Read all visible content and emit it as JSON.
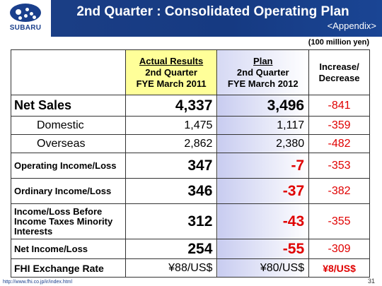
{
  "header": {
    "brand": "SUBARU",
    "title": "2nd Quarter : Consolidated Operating Plan",
    "subtitle": "<Appendix>"
  },
  "unit": "(100 million yen)",
  "columns": {
    "actual": [
      "Actual Results",
      "2nd Quarter",
      "FYE March 2011"
    ],
    "plan": [
      "Plan",
      "2nd Quarter",
      "FYE March 2012"
    ],
    "diff": [
      "Increase/",
      "Decrease"
    ]
  },
  "rows": [
    {
      "label": "Net Sales",
      "actual": "4,337",
      "plan": "3,496",
      "diff": "-841"
    },
    {
      "label": "Domestic",
      "actual": "1,475",
      "plan": "1,117",
      "diff": "-359"
    },
    {
      "label": "Overseas",
      "actual": "2,862",
      "plan": "2,380",
      "diff": "-482"
    },
    {
      "label": "Operating Income/Loss",
      "actual": "347",
      "plan": "-7",
      "diff": "-353"
    },
    {
      "label": "Ordinary Income/Loss",
      "actual": "346",
      "plan": "-37",
      "diff": "-382"
    },
    {
      "label": "Income/Loss Before Income Taxes Minority Interests",
      "actual": "312",
      "plan": "-43",
      "diff": "-355"
    },
    {
      "label": "Net Income/Loss",
      "actual": "254",
      "plan": "-55",
      "diff": "-309"
    },
    {
      "label": "FHI Exchange Rate",
      "actual": "¥88/US$",
      "plan": "¥80/US$",
      "diff": "¥8/US$"
    }
  ],
  "footer": {
    "url": "http://www.fhi.co.jp/ir/index.html",
    "page": "31"
  },
  "colors": {
    "header_bg": "#1c3f86",
    "actual_header_bg": "#ffff99",
    "plan_gradient": "#c8ccf0",
    "negative": "#e00000"
  }
}
